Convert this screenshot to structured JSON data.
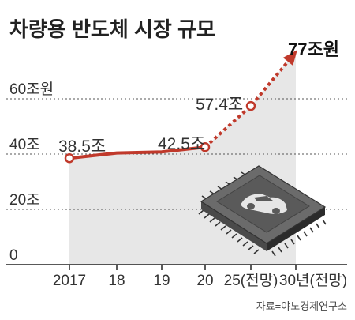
{
  "chart_data": {
    "type": "line",
    "title": "차량용 반도체 시장 규모",
    "source": "자료=야노경제연구소",
    "categories": [
      "2017",
      "18",
      "19",
      "20",
      "25(전망)",
      "30년(전망)"
    ],
    "values": [
      38.5,
      40.4,
      40.8,
      42.5,
      57.4,
      77
    ],
    "data_labels": [
      "38.5조",
      "",
      "",
      "42.5조",
      "57.4조",
      "77조원"
    ],
    "yticks": [
      {
        "value": 0,
        "label": "0"
      },
      {
        "value": 20,
        "label": "20조"
      },
      {
        "value": 40,
        "label": "40조"
      },
      {
        "value": 60,
        "label": "60조원"
      }
    ],
    "ylim": [
      0,
      80
    ],
    "grid": "dotted horizontal",
    "forecast_from_index": 3,
    "colors": {
      "line": "#c0392b",
      "area": "#e7e7e7",
      "grid": "#555555",
      "axis": "#222222",
      "marker_fill": "#ffffff"
    }
  }
}
